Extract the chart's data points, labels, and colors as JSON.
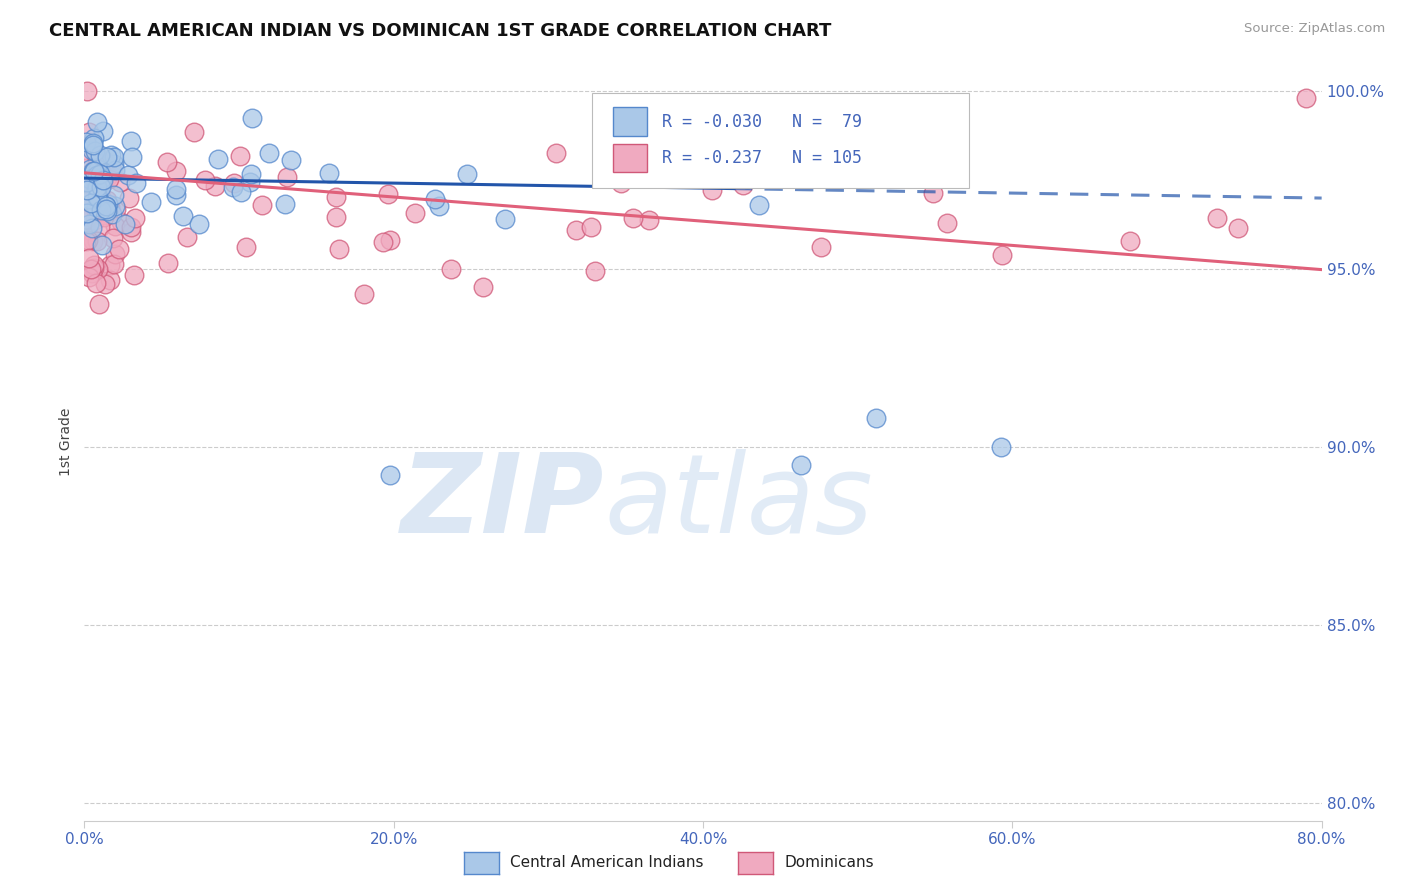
{
  "title": "CENTRAL AMERICAN INDIAN VS DOMINICAN 1ST GRADE CORRELATION CHART",
  "source": "Source: ZipAtlas.com",
  "ylabel": "1st Grade",
  "xlim": [
    0.0,
    0.8
  ],
  "ylim": [
    0.795,
    1.008
  ],
  "xticks": [
    0.0,
    0.2,
    0.4,
    0.6,
    0.8
  ],
  "xticklabels": [
    "0.0%",
    "20.0%",
    "40.0%",
    "60.0%",
    "80.0%"
  ],
  "yticks_right": [
    0.8,
    0.85,
    0.9,
    0.95,
    1.0
  ],
  "yticklabels_right": [
    "80.0%",
    "85.0%",
    "90.0%",
    "95.0%",
    "100.0%"
  ],
  "blue_color": "#aac8e8",
  "blue_edge": "#5588cc",
  "pink_color": "#f0aac0",
  "pink_edge": "#d05878",
  "blue_R": -0.03,
  "blue_N": 79,
  "pink_R": -0.237,
  "pink_N": 105,
  "legend_label_blue": "Central American Indians",
  "legend_label_pink": "Dominicans",
  "blue_line_color": "#2255aa",
  "pink_line_color": "#e0607a",
  "grid_color": "#cccccc",
  "tick_color": "#4466bb",
  "title_color": "#111111",
  "source_color": "#999999"
}
